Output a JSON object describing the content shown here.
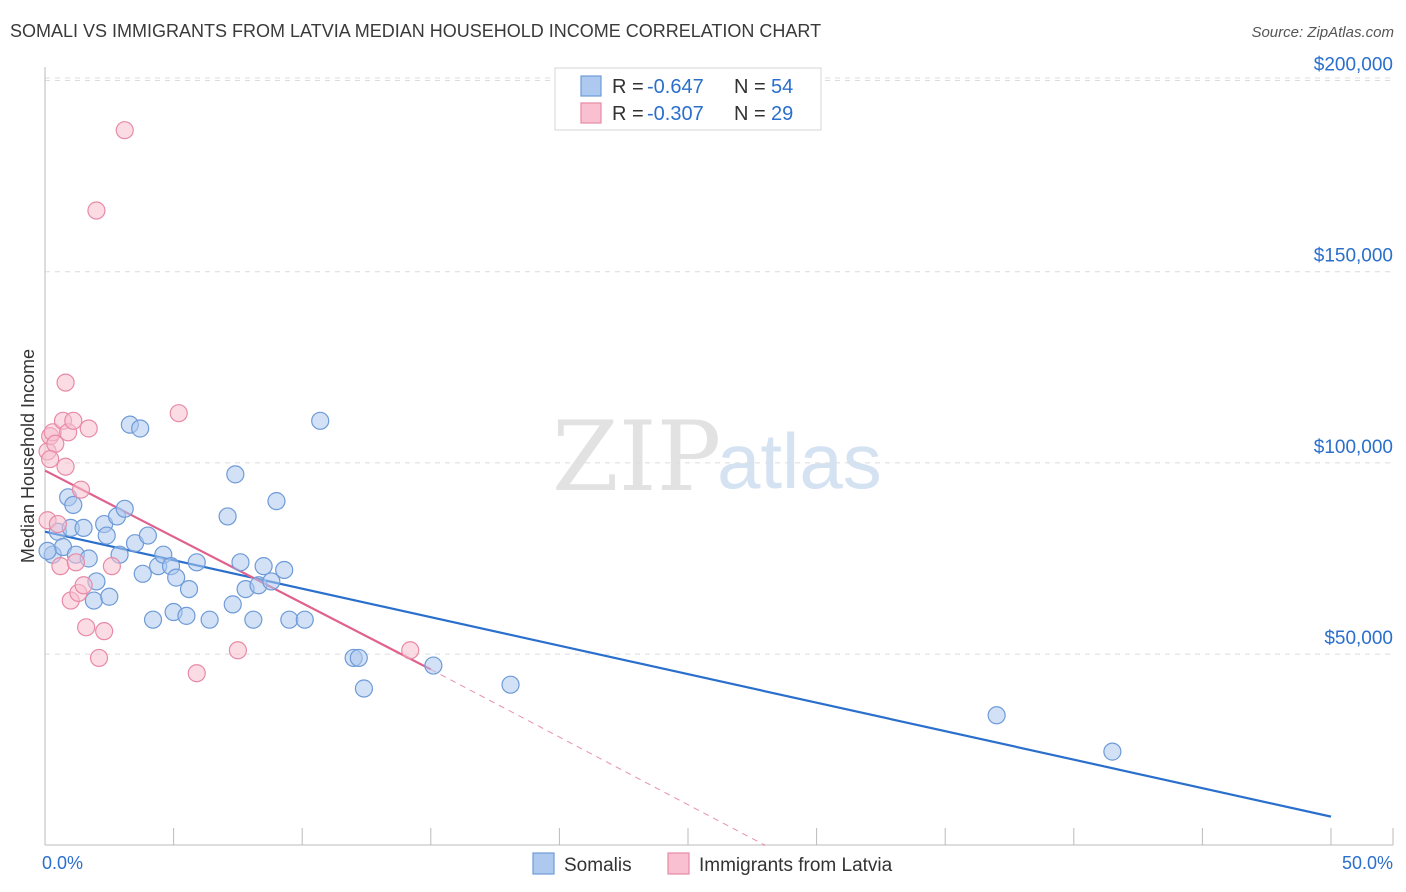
{
  "chart_data": {
    "type": "scatter",
    "title": "SOMALI VS IMMIGRANTS FROM LATVIA MEDIAN HOUSEHOLD INCOME CORRELATION CHART",
    "source": "Source: ZipAtlas.com",
    "ylabel": "Median Household Income",
    "xlim": [
      0,
      50
    ],
    "ylim": [
      0,
      210000
    ],
    "x_tick_labels": [
      "0.0%",
      "50.0%"
    ],
    "y_ticks": [
      {
        "value": 50000,
        "label": "$50,000"
      },
      {
        "value": 100000,
        "label": "$100,000"
      },
      {
        "value": 150000,
        "label": "$150,000"
      },
      {
        "value": 200000,
        "label": "$200,000"
      }
    ],
    "watermark": {
      "zip": "ZIP",
      "atlas": "atlas"
    },
    "legend": {
      "r_label": "R =",
      "n_label": "N =",
      "entries": [
        {
          "name": "Somalis",
          "r": "-0.647",
          "n": "54",
          "fill": "#adc9ef",
          "stroke": "#6e9bd8"
        },
        {
          "name": "Immigrants from Latvia",
          "r": "-0.307",
          "n": "29",
          "fill": "#f8c0d0",
          "stroke": "#e88aa6"
        }
      ]
    },
    "series": [
      {
        "name": "Somalis",
        "color": "#2a6fcc",
        "fill": "#adc9ef",
        "stroke": "#6e9bd8",
        "trend": {
          "x0": 0,
          "y0": 82000,
          "x1": 50,
          "y1": 7500,
          "dash_to": null
        },
        "points": [
          [
            0.3,
            76000
          ],
          [
            0.5,
            82000
          ],
          [
            0.7,
            78000
          ],
          [
            0.9,
            91000
          ],
          [
            1.0,
            83000
          ],
          [
            1.1,
            89000
          ],
          [
            1.2,
            76000
          ],
          [
            1.5,
            83000
          ],
          [
            1.7,
            75000
          ],
          [
            1.9,
            64000
          ],
          [
            2.0,
            69000
          ],
          [
            2.3,
            84000
          ],
          [
            2.4,
            81000
          ],
          [
            2.5,
            65000
          ],
          [
            2.8,
            86000
          ],
          [
            2.9,
            76000
          ],
          [
            3.1,
            88000
          ],
          [
            3.3,
            110000
          ],
          [
            3.5,
            79000
          ],
          [
            3.7,
            109000
          ],
          [
            3.8,
            71000
          ],
          [
            4.0,
            81000
          ],
          [
            4.2,
            59000
          ],
          [
            4.4,
            73000
          ],
          [
            4.6,
            76000
          ],
          [
            4.9,
            73000
          ],
          [
            5.0,
            61000
          ],
          [
            5.1,
            70000
          ],
          [
            5.5,
            60000
          ],
          [
            5.6,
            67000
          ],
          [
            5.9,
            74000
          ],
          [
            6.4,
            59000
          ],
          [
            7.1,
            86000
          ],
          [
            7.3,
            63000
          ],
          [
            7.4,
            97000
          ],
          [
            7.6,
            74000
          ],
          [
            7.8,
            67000
          ],
          [
            8.1,
            59000
          ],
          [
            8.3,
            68000
          ],
          [
            8.5,
            73000
          ],
          [
            8.8,
            69000
          ],
          [
            9.0,
            90000
          ],
          [
            9.3,
            72000
          ],
          [
            9.5,
            59000
          ],
          [
            10.1,
            59000
          ],
          [
            10.7,
            111000
          ],
          [
            12.0,
            49000
          ],
          [
            12.2,
            49000
          ],
          [
            12.4,
            41000
          ],
          [
            15.1,
            47000
          ],
          [
            18.1,
            42000
          ],
          [
            37.0,
            34000
          ],
          [
            41.5,
            24500
          ],
          [
            0.1,
            77000
          ]
        ]
      },
      {
        "name": "Immigrants from Latvia",
        "color": "#e0608e",
        "fill": "#f8c0d0",
        "stroke": "#e88aa6",
        "trend": {
          "x0": 0,
          "y0": 98000,
          "x1": 15,
          "y1": 46000,
          "dash_to": {
            "x": 28,
            "y": 0
          }
        },
        "points": [
          [
            0.1,
            103000
          ],
          [
            0.1,
            85000
          ],
          [
            0.2,
            107000
          ],
          [
            0.3,
            108000
          ],
          [
            0.4,
            105000
          ],
          [
            0.5,
            84000
          ],
          [
            0.6,
            73000
          ],
          [
            0.7,
            111000
          ],
          [
            0.8,
            121000
          ],
          [
            0.8,
            99000
          ],
          [
            0.9,
            108000
          ],
          [
            1.0,
            64000
          ],
          [
            1.1,
            111000
          ],
          [
            1.2,
            74000
          ],
          [
            1.3,
            66000
          ],
          [
            1.4,
            93000
          ],
          [
            1.5,
            68000
          ],
          [
            1.6,
            57000
          ],
          [
            1.7,
            109000
          ],
          [
            2.0,
            166000
          ],
          [
            2.1,
            49000
          ],
          [
            2.3,
            56000
          ],
          [
            2.6,
            73000
          ],
          [
            3.1,
            187000
          ],
          [
            5.2,
            113000
          ],
          [
            5.9,
            45000
          ],
          [
            7.5,
            51000
          ],
          [
            14.2,
            51000
          ],
          [
            0.2,
            101000
          ]
        ]
      }
    ]
  }
}
